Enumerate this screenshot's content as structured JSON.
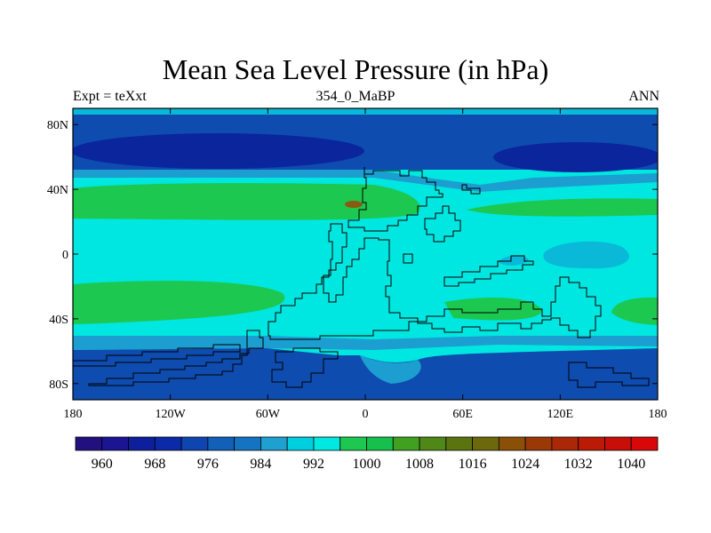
{
  "map": {
    "title": "Mean Sea Level Pressure (in hPa)",
    "left_label": "Expt = teXxt",
    "center_label": "354_0_MaBP",
    "right_label": "ANN",
    "lat_ticks": [
      "80N",
      "40N",
      "0",
      "40S",
      "80S"
    ],
    "lon_ticks": [
      "180",
      "120W",
      "60W",
      "0",
      "60E",
      "120E",
      "180"
    ]
  },
  "legend": {
    "labels": [
      "960",
      "968",
      "976",
      "984",
      "992",
      "1000",
      "1008",
      "1016",
      "1024",
      "1032",
      "1040"
    ],
    "colors": [
      "#23107f",
      "#1b1594",
      "#0e1f9e",
      "#0a2aa8",
      "#0e45b0",
      "#1260b8",
      "#1474c2",
      "#1ea0d0",
      "#00cfe0",
      "#00e8e0",
      "#1cc850",
      "#16c04c",
      "#40a020",
      "#508818",
      "#5c7410",
      "#6c680c",
      "#8a5008",
      "#9a3806",
      "#aa2806",
      "#ba1a06",
      "#c80e08",
      "#d80808"
    ]
  },
  "field_colors": {
    "low_deep": "#0b259c",
    "low": "#0e4cb0",
    "mid": "#1c9ed0",
    "mid_light": "#0ab8d8",
    "base": "#00e6e0",
    "high": "#1cc850",
    "peak": "#8a5a10"
  }
}
